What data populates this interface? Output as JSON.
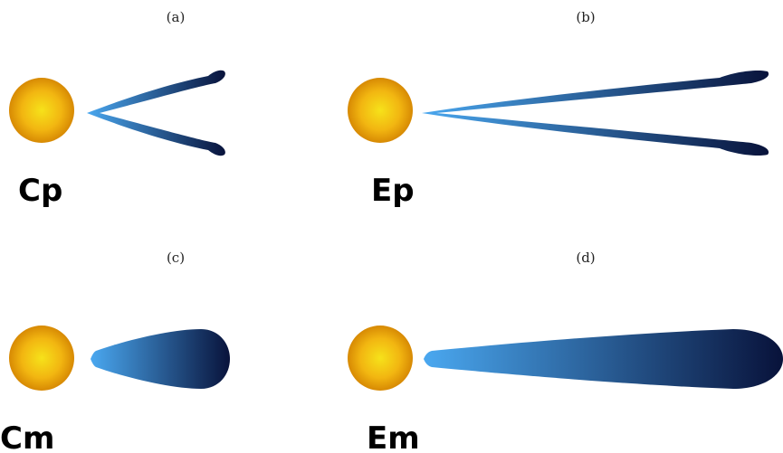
{
  "panels": [
    {
      "letter": "(a)",
      "label": "Cp"
    },
    {
      "letter": "(b)",
      "label": "Ep"
    },
    {
      "letter": "(c)",
      "label": "Cm"
    },
    {
      "letter": "(d)",
      "label": "Em"
    }
  ],
  "colors": {
    "sphere_center": "#f6e21a",
    "sphere_edge": "#d98a00",
    "jet_light": "#4aa8f0",
    "jet_dark": "#08123a"
  }
}
